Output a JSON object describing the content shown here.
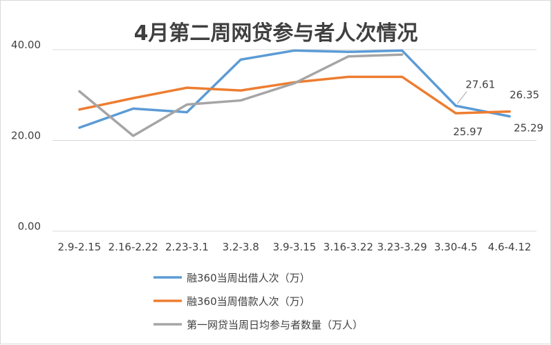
{
  "chart_data": {
    "type": "line",
    "title": "4月第二周网贷参与者人次情况",
    "categories": [
      "2.9-2.15",
      "2.16-2.22",
      "2.23-3.1",
      "3.2-3.8",
      "3.9-3.15",
      "3.16-3.22",
      "3.23-3.29",
      "3.30-4.5",
      "4.6-4.12"
    ],
    "ylim": [
      0,
      45
    ],
    "yticks": [
      0,
      20,
      40
    ],
    "ytick_labels": [
      "0.00",
      "20.00",
      "40.00"
    ],
    "grid": "horizontal",
    "legend_position": "bottom",
    "series": [
      {
        "name": "融360当周出借人次（万）",
        "color": "#5b9bd5",
        "values": [
          22.8,
          27.0,
          26.2,
          37.8,
          39.8,
          39.5,
          39.8,
          27.61,
          25.29
        ],
        "labels": [
          "",
          "",
          "",
          "",
          "",
          "",
          "",
          "27.61",
          "25.29"
        ]
      },
      {
        "name": "融360当周借款人次（万）",
        "color": "#ed7d31",
        "values": [
          26.8,
          29.3,
          31.6,
          31.0,
          32.8,
          34.0,
          34.0,
          25.97,
          26.35
        ],
        "labels": [
          "",
          "",
          "",
          "",
          "",
          "",
          "",
          "25.97",
          "26.35"
        ]
      },
      {
        "name": "第一网贷当周日均参与者数量（万人）",
        "color": "#a5a5a5",
        "values": [
          30.8,
          21.0,
          27.9,
          28.8,
          32.6,
          38.5,
          38.9,
          null,
          null
        ],
        "labels": [
          "",
          "",
          "",
          "",
          "",
          "",
          "",
          "",
          ""
        ]
      }
    ]
  }
}
